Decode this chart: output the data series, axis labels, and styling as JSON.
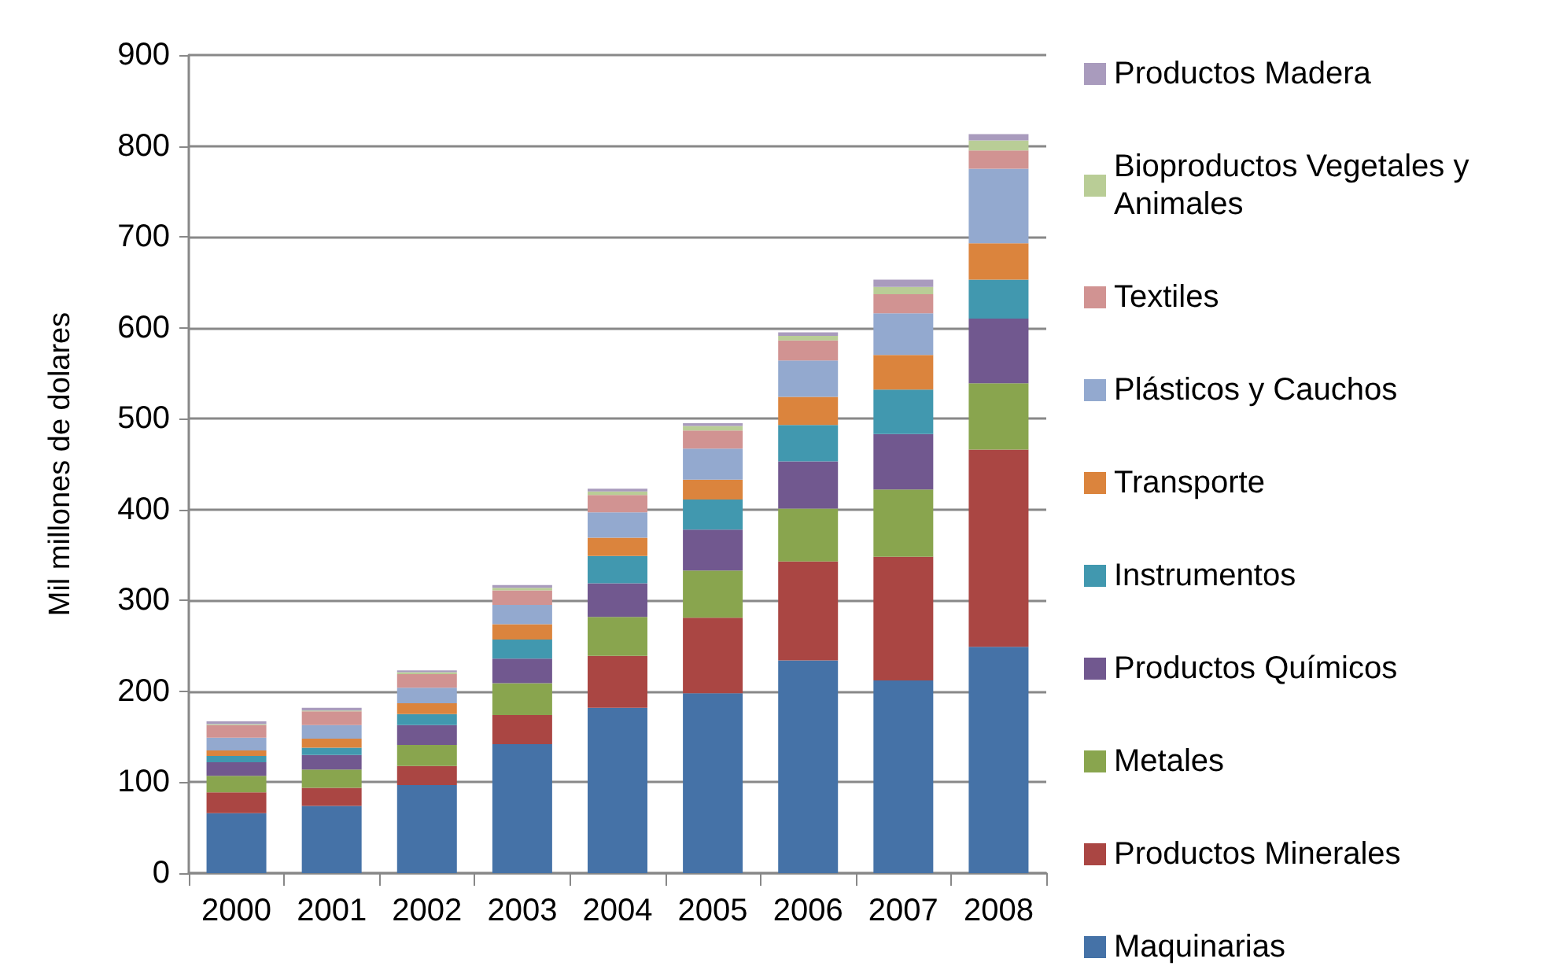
{
  "chart_data": {
    "type": "bar",
    "stacked": true,
    "ylabel": "Mil millones de dolares",
    "categories": [
      "2000",
      "2001",
      "2002",
      "2003",
      "2004",
      "2005",
      "2006",
      "2007",
      "2008"
    ],
    "ylim": [
      0,
      900
    ],
    "yticks": [
      0,
      100,
      200,
      300,
      400,
      500,
      600,
      700,
      800,
      900
    ],
    "grid": "y",
    "legend": "right",
    "series": [
      {
        "name": "Maquinarias",
        "color": "#4572a7",
        "values": [
          66,
          74,
          97,
          142,
          182,
          198,
          234,
          212,
          249
        ]
      },
      {
        "name": "Productos Minerales",
        "color": "#aa4643",
        "values": [
          23,
          20,
          21,
          32,
          57,
          83,
          109,
          136,
          217
        ]
      },
      {
        "name": "Metales",
        "color": "#89a54e",
        "values": [
          18,
          20,
          23,
          35,
          43,
          52,
          58,
          74,
          73
        ]
      },
      {
        "name": "Productos Químicos",
        "color": "#71588f",
        "values": [
          15,
          16,
          22,
          27,
          37,
          45,
          52,
          61,
          71
        ]
      },
      {
        "name": "Instrumentos",
        "color": "#4198af",
        "values": [
          7,
          8,
          12,
          21,
          30,
          33,
          40,
          49,
          43
        ]
      },
      {
        "name": "Transporte",
        "color": "#db843d",
        "values": [
          6,
          10,
          12,
          17,
          20,
          22,
          31,
          38,
          40
        ]
      },
      {
        "name": "Plásticos y Cauchos",
        "color": "#93a9cf",
        "values": [
          14,
          15,
          17,
          21,
          28,
          34,
          40,
          46,
          82
        ]
      },
      {
        "name": "Textiles",
        "color": "#d19392",
        "values": [
          14,
          15,
          15,
          16,
          19,
          20,
          22,
          21,
          20
        ]
      },
      {
        "name": "Bioproductos Vegetales y Animales",
        "color": "#b9cd96",
        "values": [
          1,
          1,
          2,
          3,
          4,
          5,
          5,
          8,
          11
        ]
      },
      {
        "name": "Productos Madera",
        "color": "#a99bbd",
        "values": [
          3,
          3,
          2,
          3,
          3,
          3,
          4,
          8,
          7
        ]
      }
    ]
  }
}
